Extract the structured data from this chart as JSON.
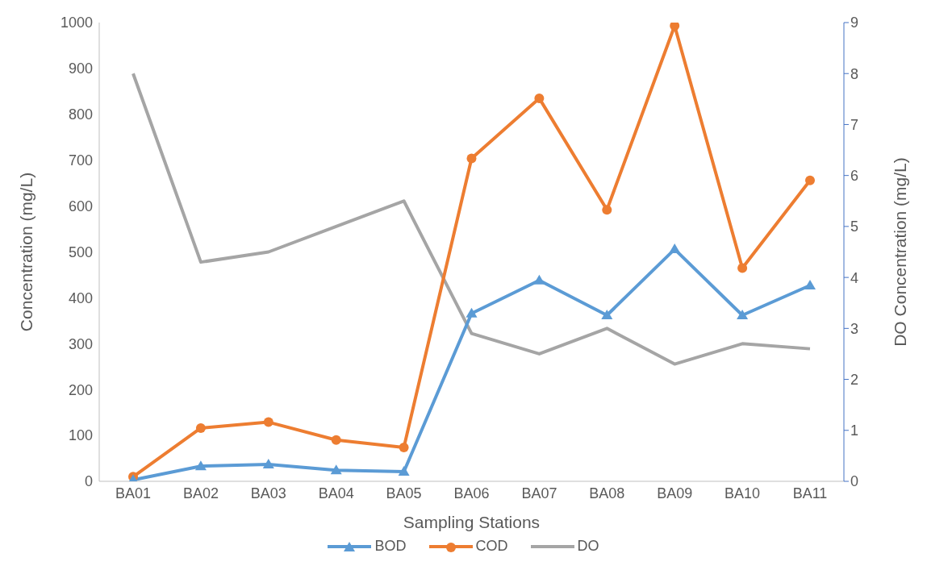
{
  "chart_data": {
    "type": "line",
    "xlabel": "Sampling Stations",
    "ylabel": "Concentration (mg/L)",
    "y2label": "DO Concentration (mg/L)",
    "categories": [
      "BA01",
      "BA02",
      "BA03",
      "BA04",
      "BA05",
      "BA06",
      "BA07",
      "BA08",
      "BA09",
      "BA10",
      "BA11"
    ],
    "series": [
      {
        "name": "BOD",
        "color": "#5b9bd5",
        "marker": "triangle",
        "values": [
          3,
          33,
          37,
          24,
          21,
          366,
          438,
          362,
          506,
          362,
          427
        ]
      },
      {
        "name": "COD",
        "color": "#ed7d31",
        "marker": "circle",
        "values": [
          10,
          116,
          129,
          90,
          74,
          704,
          835,
          592,
          993,
          465,
          656
        ]
      },
      {
        "name": "DO",
        "color": "#a5a5a5",
        "marker": "none",
        "axis": "y2",
        "values": [
          8.0,
          4.3,
          4.5,
          5.0,
          5.5,
          2.9,
          2.5,
          3.0,
          2.3,
          2.7,
          2.6
        ]
      }
    ],
    "ylim": [
      0,
      1000
    ],
    "yticks": [
      0,
      100,
      200,
      300,
      400,
      500,
      600,
      700,
      800,
      900,
      1000
    ],
    "y2lim": [
      0,
      9
    ],
    "y2ticks": [
      0,
      1,
      2,
      3,
      4,
      5,
      6,
      7,
      8,
      9
    ],
    "grid": false,
    "legend": "bottom"
  }
}
